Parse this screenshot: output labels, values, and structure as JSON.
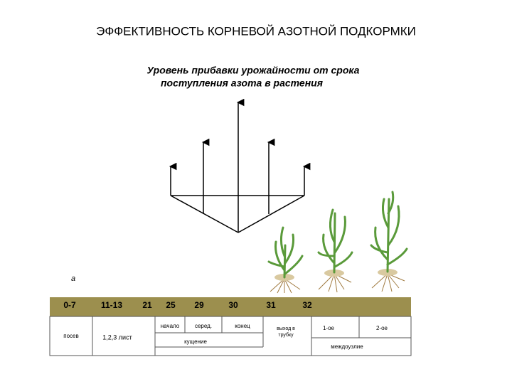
{
  "header": {
    "title": "ЭФФЕКТИВНОСТЬ КОРНЕВОЙ АЗОТНОЙ ПОДКОРМКИ"
  },
  "subtitle": {
    "lines": [
      "Уровень прибавки урожайности от срока",
      "поступления азота в растения"
    ]
  },
  "marker": "а",
  "stages": {
    "codes": [
      "0-7",
      "11-13",
      "21",
      "25",
      "29",
      "30",
      "31",
      "32"
    ]
  },
  "table": {
    "sowing": "посев",
    "leaves": "1,2,3 лист",
    "tillering": {
      "label": "кущение",
      "phases": [
        "начало",
        "серед.",
        "конец"
      ]
    },
    "booting": {
      "lines": [
        "выход в",
        "трубку"
      ]
    },
    "internodes": {
      "label": "междоузлие",
      "items": [
        "1-ое",
        "2-ое"
      ]
    }
  }
}
